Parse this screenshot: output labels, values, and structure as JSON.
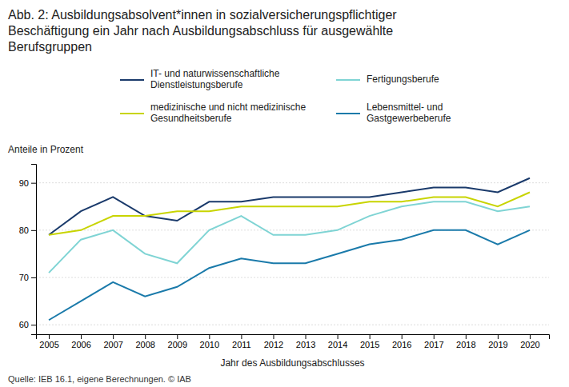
{
  "chart_data": {
    "type": "line",
    "title": "Abb. 2: Ausbildungsabsolvent*innen in sozialversicherungspflichtiger\nBeschäftigung ein Jahr nach Ausbildungsabschluss für ausgewählte\nBerufsgruppen",
    "y_label": "Anteile in Prozent",
    "x_label": "Jahr des Ausbildungsabschlusses",
    "source": "Quelle: IEB 16.1, eigene Berechnungen.  © IAB",
    "x": [
      2005,
      2006,
      2007,
      2008,
      2009,
      2010,
      2011,
      2012,
      2013,
      2014,
      2015,
      2016,
      2017,
      2018,
      2019,
      2020
    ],
    "series": [
      {
        "name": "IT- und naturwissenschaftliche\nDienstleistungsberufe",
        "color": "#1a3a6b",
        "values": [
          79,
          84,
          87,
          83,
          82,
          86,
          86,
          87,
          87,
          87,
          87,
          88,
          89,
          89,
          88,
          91
        ]
      },
      {
        "name": "medizinische und nicht medizinische\nGesundheitsberufe",
        "color": "#c8d400",
        "values": [
          79,
          80,
          83,
          83,
          84,
          84,
          85,
          85,
          85,
          85,
          86,
          86,
          87,
          87,
          85,
          88
        ]
      },
      {
        "name": "Fertigungsberufe",
        "color": "#7fd4d4",
        "values": [
          71,
          78,
          80,
          75,
          73,
          80,
          83,
          79,
          79,
          80,
          83,
          85,
          86,
          86,
          84,
          85
        ]
      },
      {
        "name": "Lebensmittel- und\nGastgewerbeberufe",
        "color": "#1a7aaa",
        "values": [
          61,
          65,
          69,
          66,
          68,
          72,
          74,
          73,
          73,
          75,
          77,
          78,
          80,
          80,
          77,
          80
        ]
      }
    ],
    "xlim": [
      2004.6,
      2020.6
    ],
    "xticks": [
      2005,
      2006,
      2007,
      2008,
      2009,
      2010,
      2011,
      2012,
      2013,
      2014,
      2015,
      2016,
      2017,
      2018,
      2019,
      2020
    ],
    "ylim": [
      58,
      94
    ],
    "yticks": [
      60,
      70,
      80,
      90
    ],
    "grid": true,
    "legend": "top"
  }
}
